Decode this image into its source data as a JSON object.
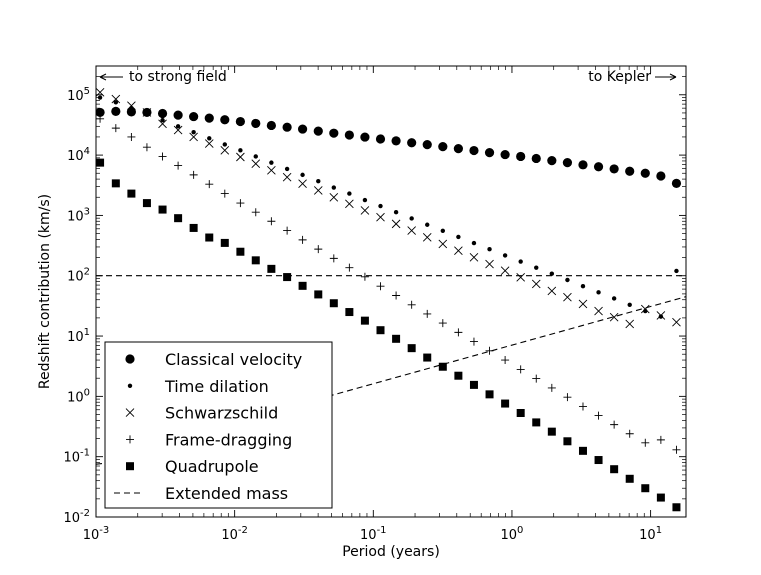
{
  "chart_data": {
    "type": "scatter",
    "xlabel": "Period (years)",
    "ylabel": "Redshift contribution (km/s)",
    "xscale": "log",
    "yscale": "log",
    "xlim": [
      0.001,
      18
    ],
    "ylim": [
      0.01,
      300000
    ],
    "grid": false,
    "legend_position": "bottom-left",
    "x_ticks": [
      {
        "value": 0.001,
        "base": "10",
        "exp": "-3"
      },
      {
        "value": 0.01,
        "base": "10",
        "exp": "-2"
      },
      {
        "value": 0.1,
        "base": "10",
        "exp": "-1"
      },
      {
        "value": 1,
        "base": "10",
        "exp": "0"
      },
      {
        "value": 10,
        "base": "10",
        "exp": "1"
      }
    ],
    "y_ticks": [
      {
        "value": 0.01,
        "base": "10",
        "exp": "-2"
      },
      {
        "value": 0.1,
        "base": "10",
        "exp": "-1"
      },
      {
        "value": 1,
        "base": "10",
        "exp": "0"
      },
      {
        "value": 10,
        "base": "10",
        "exp": "1"
      },
      {
        "value": 100,
        "base": "10",
        "exp": "2"
      },
      {
        "value": 1000,
        "base": "10",
        "exp": "3"
      },
      {
        "value": 10000,
        "base": "10",
        "exp": "4"
      },
      {
        "value": 100000,
        "base": "10",
        "exp": "5"
      }
    ],
    "annotations": [
      {
        "text": "to strong field",
        "direction": "left"
      },
      {
        "text": "to Kepler",
        "direction": "right"
      }
    ],
    "series": [
      {
        "name": "Classical velocity",
        "marker": "circle-large",
        "x": [
          0.00107,
          0.00139,
          0.0018,
          0.00233,
          0.00302,
          0.00391,
          0.00506,
          0.00656,
          0.00849,
          0.011,
          0.0142,
          0.0184,
          0.0239,
          0.0309,
          0.0401,
          0.0519,
          0.0672,
          0.087,
          0.1127,
          0.146,
          0.1891,
          0.2449,
          0.3172,
          0.4108,
          0.5321,
          0.6892,
          0.8926,
          1.156,
          1.497,
          1.939,
          2.512,
          3.253,
          4.213,
          5.457,
          7.068,
          9.154,
          11.86,
          15.36
        ],
        "y": [
          51000,
          53000,
          52000,
          51000,
          49000,
          46000,
          43500,
          41000,
          38600,
          36000,
          33500,
          31000,
          29000,
          27000,
          25000,
          23100,
          21500,
          19900,
          18500,
          17200,
          16000,
          14900,
          13800,
          12800,
          11900,
          11000,
          10200,
          9500,
          8800,
          8100,
          7500,
          6900,
          6400,
          5900,
          5400,
          5000,
          4500,
          3400
        ]
      },
      {
        "name": "Time dilation",
        "marker": "dot",
        "x": [
          0.00107,
          0.00139,
          0.0018,
          0.00233,
          0.00302,
          0.00391,
          0.00506,
          0.00656,
          0.00849,
          0.011,
          0.0142,
          0.0184,
          0.0239,
          0.0309,
          0.0401,
          0.0519,
          0.0672,
          0.087,
          0.1127,
          0.146,
          0.1891,
          0.2449,
          0.3172,
          0.4108,
          0.5321,
          0.6892,
          0.8926,
          1.156,
          1.497,
          1.939,
          2.512,
          3.253,
          4.213,
          5.457,
          7.068,
          9.154,
          11.86,
          15.36
        ],
        "y": [
          90000,
          75000,
          60000,
          48000,
          38000,
          30000,
          24000,
          19000,
          15000,
          12000,
          9500,
          7500,
          5900,
          4700,
          3700,
          2900,
          2300,
          1800,
          1430,
          1130,
          890,
          700,
          556,
          440,
          348,
          275,
          217,
          172,
          136,
          108,
          85,
          67,
          53,
          42,
          33,
          26,
          21,
          120
        ]
      },
      {
        "name": "Schwarzschild",
        "marker": "x",
        "x": [
          0.00107,
          0.00139,
          0.0018,
          0.00233,
          0.00302,
          0.00391,
          0.00506,
          0.00656,
          0.00849,
          0.011,
          0.0142,
          0.0184,
          0.0239,
          0.0309,
          0.0401,
          0.0519,
          0.0672,
          0.087,
          0.1127,
          0.146,
          0.1891,
          0.2449,
          0.3172,
          0.4108,
          0.5321,
          0.6892,
          0.8926,
          1.156,
          1.497,
          1.939,
          2.512,
          3.253,
          4.213,
          5.457,
          7.068,
          9.154,
          11.86,
          15.36
        ],
        "y": [
          110000,
          85000,
          66000,
          51000,
          33000,
          26000,
          20000,
          15500,
          12000,
          9300,
          7200,
          5600,
          4300,
          3350,
          2600,
          2000,
          1560,
          1210,
          935,
          724,
          560,
          434,
          336,
          260,
          202,
          156,
          121,
          94,
          73,
          56,
          44,
          34,
          26,
          20.5,
          15.9,
          28,
          22,
          17
        ]
      },
      {
        "name": "Frame-dragging",
        "marker": "plus",
        "x": [
          0.00107,
          0.00139,
          0.0018,
          0.00233,
          0.00302,
          0.00391,
          0.00506,
          0.00656,
          0.00849,
          0.011,
          0.0142,
          0.0184,
          0.0239,
          0.0309,
          0.0401,
          0.0519,
          0.0672,
          0.087,
          0.1127,
          0.146,
          0.1891,
          0.2449,
          0.3172,
          0.4108,
          0.5321,
          0.6892,
          0.8926,
          1.156,
          1.497,
          1.939,
          2.512,
          3.253,
          4.213,
          5.457,
          7.068,
          9.154,
          11.86,
          15.36
        ],
        "y": [
          40000,
          28000,
          20000,
          13500,
          9500,
          6700,
          4700,
          3300,
          2300,
          1600,
          1130,
          800,
          560,
          393,
          276,
          194,
          136,
          96,
          67,
          47,
          33,
          23.3,
          16.4,
          11.5,
          8.1,
          5.7,
          4.0,
          2.8,
          1.97,
          1.38,
          0.97,
          0.68,
          0.48,
          0.34,
          0.24,
          0.17,
          0.19,
          0.13
        ]
      },
      {
        "name": "Quadrupole",
        "marker": "square",
        "x": [
          0.00107,
          0.00139,
          0.0018,
          0.00233,
          0.00302,
          0.00391,
          0.00506,
          0.00656,
          0.00849,
          0.011,
          0.0142,
          0.0184,
          0.0239,
          0.0309,
          0.0401,
          0.0519,
          0.0672,
          0.087,
          0.1127,
          0.146,
          0.1891,
          0.2449,
          0.3172,
          0.4108,
          0.5321,
          0.6892,
          0.8926,
          1.156,
          1.497,
          1.939,
          2.512,
          3.253,
          4.213,
          5.457,
          7.068,
          9.154,
          11.86,
          15.36
        ],
        "y": [
          7500,
          3400,
          2300,
          1600,
          1250,
          900,
          620,
          430,
          350,
          250,
          180,
          130,
          95,
          68,
          49,
          35,
          25,
          18,
          12.5,
          9,
          6.3,
          4.4,
          3.1,
          2.2,
          1.55,
          1.08,
          0.76,
          0.53,
          0.37,
          0.26,
          0.18,
          0.125,
          0.088,
          0.062,
          0.043,
          0.03,
          0.021,
          0.0145
        ]
      },
      {
        "name": "Extended mass",
        "marker": "dashed-line",
        "segments": [
          {
            "x": [
              0.001,
              18
            ],
            "y": [
              100,
              100
            ]
          },
          {
            "x": [
              0.001,
              0.0013
            ],
            "y": [
              0.075,
              0.08
            ]
          },
          {
            "x": [
              0.04,
              18
            ],
            "y": [
              0.9,
              45
            ]
          }
        ]
      }
    ]
  }
}
